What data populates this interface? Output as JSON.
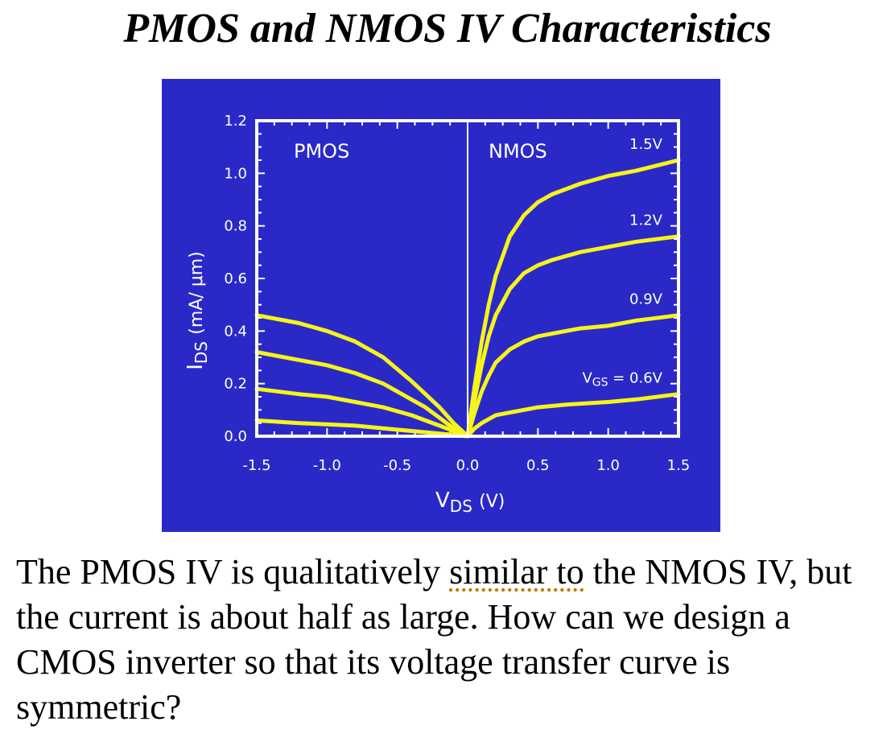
{
  "slide": {
    "title": "PMOS and NMOS IV Characteristics"
  },
  "paragraph": {
    "part1": "The PMOS IV is qualitatively ",
    "underlined": "similar to",
    "part2": " the NMOS IV, but the current is about half as large. How can we design a CMOS inverter so that its voltage transfer curve is symmetric?"
  },
  "colors": {
    "panel_bg": "#2a29c8",
    "axis": "#ffffff",
    "curve": "#f5f51a"
  },
  "chart_data": {
    "type": "line",
    "xlabel_main": "V",
    "xlabel_sub": "DS",
    "xlabel_unit": "(V)",
    "ylabel_main": "I",
    "ylabel_sub": "DS",
    "ylabel_unit": "(mA/ μm)",
    "xlim": [
      -1.5,
      1.5
    ],
    "ylim": [
      0.0,
      1.2
    ],
    "x_ticks": [
      "-1.5",
      "-1.0",
      "-0.5",
      "0.0",
      "0.5",
      "1.0",
      "1.5"
    ],
    "y_ticks": [
      "0.0",
      "0.2",
      "0.4",
      "0.6",
      "0.8",
      "1.0",
      "1.2"
    ],
    "region_labels": {
      "left": "PMOS",
      "right": "NMOS"
    },
    "grid": false,
    "series": [
      {
        "name": "1.5V",
        "label": "1.5V",
        "side": "NMOS",
        "x": [
          0.0,
          0.05,
          0.1,
          0.15,
          0.2,
          0.3,
          0.4,
          0.5,
          0.6,
          0.8,
          1.0,
          1.2,
          1.5
        ],
        "y": [
          0.0,
          0.19,
          0.36,
          0.5,
          0.61,
          0.76,
          0.84,
          0.89,
          0.92,
          0.96,
          0.99,
          1.01,
          1.05
        ]
      },
      {
        "name": "1.2V",
        "label": "1.2V",
        "side": "NMOS",
        "x": [
          0.0,
          0.05,
          0.1,
          0.15,
          0.2,
          0.3,
          0.4,
          0.5,
          0.6,
          0.8,
          1.0,
          1.2,
          1.5
        ],
        "y": [
          0.0,
          0.14,
          0.27,
          0.38,
          0.46,
          0.56,
          0.62,
          0.65,
          0.67,
          0.7,
          0.72,
          0.74,
          0.76
        ]
      },
      {
        "name": "0.9V",
        "label": "0.9V",
        "side": "NMOS",
        "x": [
          0.0,
          0.05,
          0.1,
          0.15,
          0.2,
          0.3,
          0.4,
          0.5,
          0.6,
          0.8,
          1.0,
          1.2,
          1.5
        ],
        "y": [
          0.0,
          0.09,
          0.17,
          0.23,
          0.28,
          0.33,
          0.36,
          0.38,
          0.39,
          0.41,
          0.42,
          0.44,
          0.46
        ]
      },
      {
        "name": "VGS = 0.6V",
        "label": "= 0.6V",
        "label_prefix": "V",
        "label_sub": "GS",
        "side": "NMOS",
        "x": [
          0.0,
          0.05,
          0.1,
          0.2,
          0.3,
          0.5,
          0.7,
          1.0,
          1.2,
          1.5
        ],
        "y": [
          0.0,
          0.03,
          0.05,
          0.08,
          0.09,
          0.11,
          0.12,
          0.13,
          0.14,
          0.16
        ]
      },
      {
        "name": "PMOS-1",
        "side": "PMOS",
        "x": [
          -1.5,
          -1.2,
          -1.0,
          -0.8,
          -0.6,
          -0.4,
          -0.3,
          -0.2,
          -0.1,
          0.0
        ],
        "y": [
          0.46,
          0.43,
          0.4,
          0.36,
          0.3,
          0.21,
          0.16,
          0.11,
          0.05,
          0.0
        ]
      },
      {
        "name": "PMOS-2",
        "side": "PMOS",
        "x": [
          -1.5,
          -1.2,
          -1.0,
          -0.8,
          -0.6,
          -0.4,
          -0.3,
          -0.2,
          -0.1,
          0.0
        ],
        "y": [
          0.32,
          0.29,
          0.27,
          0.24,
          0.2,
          0.14,
          0.11,
          0.07,
          0.03,
          0.0
        ]
      },
      {
        "name": "PMOS-3",
        "side": "PMOS",
        "x": [
          -1.5,
          -1.2,
          -1.0,
          -0.8,
          -0.6,
          -0.4,
          -0.3,
          -0.2,
          -0.1,
          0.0
        ],
        "y": [
          0.18,
          0.16,
          0.15,
          0.13,
          0.11,
          0.08,
          0.06,
          0.04,
          0.02,
          0.0
        ]
      },
      {
        "name": "PMOS-4",
        "side": "PMOS",
        "x": [
          -1.5,
          -1.2,
          -1.0,
          -0.8,
          -0.6,
          -0.4,
          -0.2,
          -0.1,
          0.0
        ],
        "y": [
          0.06,
          0.05,
          0.045,
          0.04,
          0.03,
          0.02,
          0.01,
          0.005,
          0.0
        ]
      }
    ]
  }
}
